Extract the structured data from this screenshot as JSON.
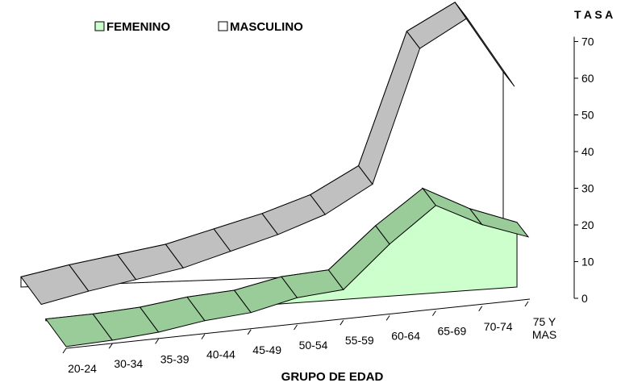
{
  "chart_data": {
    "type": "area",
    "title": "",
    "xlabel": "GRUPO DE EDAD",
    "ylabel": "T A S A",
    "ylim": [
      0,
      70
    ],
    "yticks": [
      0,
      10,
      20,
      30,
      40,
      50,
      60,
      70
    ],
    "categories": [
      "20-24",
      "30-34",
      "35-39",
      "40-44",
      "45-49",
      "50-54",
      "55-59",
      "60-64",
      "65-69",
      "70-74",
      "75 Y MAS"
    ],
    "category_lines": [
      [
        "20-24"
      ],
      [
        "30-34"
      ],
      [
        "35-39"
      ],
      [
        "40-44"
      ],
      [
        "45-49"
      ],
      [
        "50-54"
      ],
      [
        "55-59"
      ],
      [
        "60-64"
      ],
      [
        "65-69"
      ],
      [
        "70-74"
      ],
      [
        "75 Y",
        "MAS"
      ]
    ],
    "legend_position": "top-left",
    "series": [
      {
        "name": "FEMENINO",
        "color": "#ccffcc",
        "values": [
          0.5,
          1.0,
          2.0,
          4.0,
          5.0,
          8.0,
          9.0,
          21.0,
          31.0,
          24.0,
          19.0
        ]
      },
      {
        "name": "MASCULINO",
        "color": "#ffffff",
        "values": [
          3.0,
          6.0,
          8.5,
          11.0,
          15.0,
          19.0,
          24.0,
          32.0,
          71.0,
          79.0,
          58.0
        ]
      }
    ]
  }
}
